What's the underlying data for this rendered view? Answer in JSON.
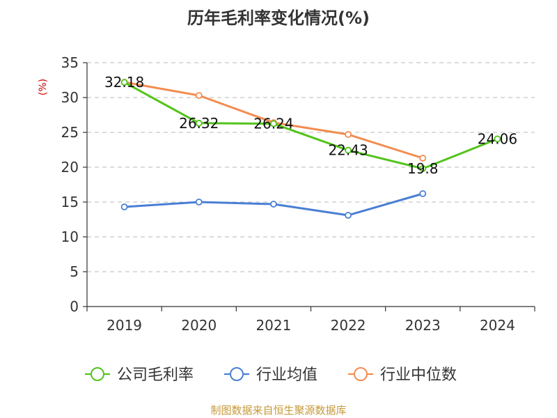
{
  "chart_data": {
    "type": "line",
    "title": "历年毛利率变化情况(%)",
    "ylabel": "(%)",
    "xlabel": "",
    "categories": [
      "2019",
      "2020",
      "2021",
      "2022",
      "2023",
      "2024"
    ],
    "ylim": [
      0,
      35
    ],
    "yticks": [
      0,
      5,
      10,
      15,
      20,
      25,
      30,
      35
    ],
    "grid": true,
    "legend_position": "bottom",
    "series": [
      {
        "name": "公司毛利率",
        "color": "#52c41a",
        "values": [
          32.18,
          26.32,
          26.24,
          22.43,
          19.8,
          24.06
        ],
        "data_labels": [
          "32.18",
          "26.32",
          "26.24",
          "22.43",
          "19.8",
          "24.06"
        ]
      },
      {
        "name": "行业均值",
        "color": "#4a7fd4",
        "values": [
          14.3,
          15.0,
          14.7,
          13.1,
          16.2,
          null
        ]
      },
      {
        "name": "行业中位数",
        "color": "#f28c50",
        "values": [
          32.2,
          30.3,
          26.4,
          24.7,
          21.3,
          null
        ]
      }
    ]
  },
  "source_text": "制图数据来自恒生聚源数据库"
}
